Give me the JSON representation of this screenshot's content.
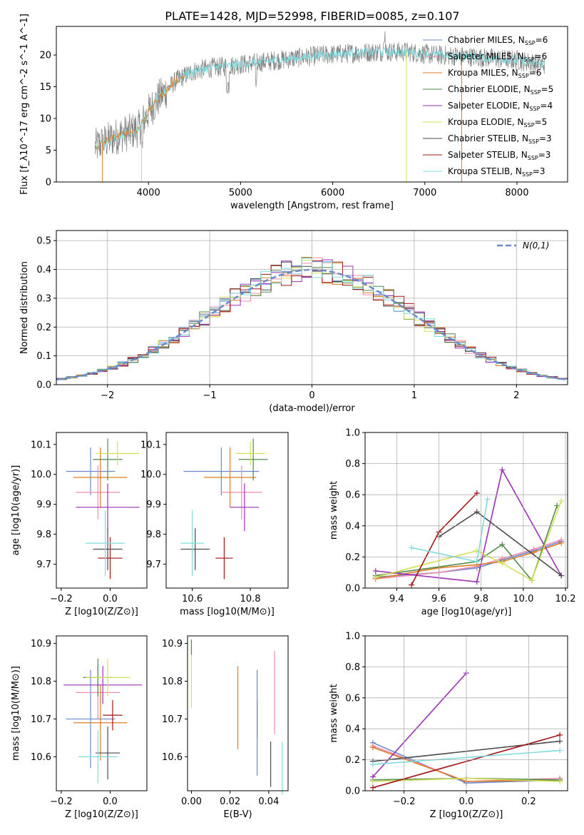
{
  "chart_data": [
    {
      "id": "spectrum",
      "type": "line",
      "title": "PLATE=1428, MJD=52998, FIBERID=0085, z=0.107",
      "xlabel": "wavelength [Angstrom, rest frame]",
      "ylabel": "Flux [f_λ10^-17 erg cm^-2 s^-1 A^-1]",
      "xlim": [
        3000,
        8550
      ],
      "ylim": [
        0,
        24.5
      ],
      "xticks": [
        4000,
        5000,
        6000,
        7000,
        8000
      ],
      "yticks": [
        0,
        5,
        10,
        15,
        20
      ],
      "grid": false,
      "legend_position": "upper-right",
      "spectrum_continuum": {
        "x": [
          3420,
          3550,
          3700,
          3800,
          3900,
          4000,
          4100,
          4200,
          4300,
          4500,
          4700,
          5000,
          5300,
          5600,
          5900,
          6200,
          6500,
          6800,
          7100,
          7400,
          7700,
          8000,
          8300
        ],
        "y": [
          5.5,
          6.5,
          7.5,
          7.8,
          8.5,
          11.0,
          13.0,
          14.5,
          16.0,
          17.5,
          18.0,
          18.5,
          19.0,
          19.5,
          20.0,
          20.3,
          20.5,
          20.5,
          20.0,
          19.8,
          19.5,
          19.2,
          18.5
        ]
      },
      "series": [
        {
          "name": "Chabrier MILES, N_SSP=6",
          "color": "#6a89cc"
        },
        {
          "name": "Salpeter MILES, N_SSP=6",
          "color": "#f08caf"
        },
        {
          "name": "Kroupa MILES, N_SSP=6",
          "color": "#e07b24"
        },
        {
          "name": "Chabrier ELODIE, N_SSP=5",
          "color": "#4f8a4a"
        },
        {
          "name": "Salpeter ELODIE, N_SSP=4",
          "color": "#9b30b5"
        },
        {
          "name": "Kroupa ELODIE, N_SSP=5",
          "color": "#d4e157"
        },
        {
          "name": "Chabrier STELIB, N_SSP=3",
          "color": "#4a4a4a"
        },
        {
          "name": "Salpeter STELIB, N_SSP=3",
          "color": "#a31515"
        },
        {
          "name": "Kroupa STELIB, N_SSP=3",
          "color": "#7fdde0"
        }
      ]
    },
    {
      "id": "residuals",
      "type": "line",
      "xlabel": "(data-model)/error",
      "ylabel": "Normed distribution",
      "xlim": [
        -2.5,
        2.5
      ],
      "ylim": [
        0,
        0.535
      ],
      "xticks": [
        -2,
        -1,
        0,
        1,
        2
      ],
      "yticks": [
        0.0,
        0.1,
        0.2,
        0.3,
        0.4,
        0.5
      ],
      "grid": true,
      "legend_position": "upper-right",
      "legend": "N(0,1)",
      "gaussian": {
        "mean": 0,
        "sigma": 1
      }
    },
    {
      "id": "age_vs_Z",
      "type": "scatter",
      "xlabel": "Z [log10(Z/Z⊙)]",
      "ylabel": "age [log10(age/yr)]",
      "xlim": [
        -0.22,
        0.15
      ],
      "ylim": [
        9.62,
        10.14
      ],
      "xticks": [
        -0.2,
        0.0
      ],
      "yticks": [
        9.7,
        9.8,
        9.9,
        10.0,
        10.1
      ],
      "points": [
        {
          "x": -0.08,
          "xerr": 0.1,
          "y": 10.01,
          "yerr": 0.08,
          "series": "Chabrier MILES"
        },
        {
          "x": -0.05,
          "xerr": 0.09,
          "y": 9.94,
          "yerr": 0.09,
          "series": "Salpeter MILES"
        },
        {
          "x": -0.04,
          "xerr": 0.11,
          "y": 9.99,
          "yerr": 0.1,
          "series": "Kroupa MILES"
        },
        {
          "x": -0.01,
          "xerr": 0.06,
          "y": 10.05,
          "yerr": 0.07,
          "series": "Chabrier ELODIE"
        },
        {
          "x": -0.01,
          "xerr": 0.13,
          "y": 9.89,
          "yerr": 0.08,
          "series": "Salpeter ELODIE"
        },
        {
          "x": 0.03,
          "xerr": 0.09,
          "y": 10.07,
          "yerr": 0.04,
          "series": "Kroupa ELODIE"
        },
        {
          "x": -0.01,
          "xerr": 0.06,
          "y": 9.75,
          "yerr": 0.07,
          "series": "Chabrier STELIB"
        },
        {
          "x": 0.0,
          "xerr": 0.05,
          "y": 9.72,
          "yerr": 0.07,
          "series": "Salpeter STELIB"
        },
        {
          "x": -0.02,
          "xerr": 0.08,
          "y": 9.77,
          "yerr": 0.11,
          "series": "Kroupa STELIB"
        }
      ]
    },
    {
      "id": "age_vs_mass",
      "type": "scatter",
      "xlabel": "mass [log10(M/M⊙)]",
      "ylabel": "",
      "xlim": [
        10.51,
        10.93
      ],
      "ylim": [
        9.62,
        10.14
      ],
      "xticks": [
        10.6,
        10.8
      ],
      "yticks": [
        9.7,
        9.8,
        9.9,
        10.0,
        10.1
      ],
      "points": [
        {
          "x": 10.7,
          "xerr": 0.13,
          "y": 10.01,
          "yerr": 0.08,
          "series": "Chabrier MILES"
        },
        {
          "x": 10.77,
          "xerr": 0.07,
          "y": 9.94,
          "yerr": 0.09,
          "series": "Salpeter MILES"
        },
        {
          "x": 10.73,
          "xerr": 0.09,
          "y": 9.99,
          "yerr": 0.1,
          "series": "Kroupa MILES"
        },
        {
          "x": 10.81,
          "xerr": 0.05,
          "y": 10.05,
          "yerr": 0.07,
          "series": "Chabrier ELODIE"
        },
        {
          "x": 10.78,
          "xerr": 0.05,
          "y": 9.89,
          "yerr": 0.08,
          "series": "Salpeter ELODIE"
        },
        {
          "x": 10.8,
          "xerr": 0.05,
          "y": 10.07,
          "yerr": 0.04,
          "series": "Kroupa ELODIE"
        },
        {
          "x": 10.61,
          "xerr": 0.05,
          "y": 9.75,
          "yerr": 0.07,
          "series": "Chabrier STELIB"
        },
        {
          "x": 10.71,
          "xerr": 0.03,
          "y": 9.72,
          "yerr": 0.07,
          "series": "Salpeter STELIB"
        },
        {
          "x": 10.6,
          "xerr": 0.04,
          "y": 9.77,
          "yerr": 0.11,
          "series": "Kroupa STELIB"
        }
      ]
    },
    {
      "id": "mass_weight_vs_age",
      "type": "line",
      "xlabel": "age [log10(age/yr)]",
      "ylabel": "mass weight",
      "xlim": [
        9.25,
        10.21
      ],
      "ylim": [
        0,
        1.0
      ],
      "xticks": [
        9.4,
        9.6,
        9.8,
        10.0,
        10.2
      ],
      "yticks": [
        0.0,
        0.2,
        0.4,
        0.6,
        0.8,
        1.0
      ],
      "grid": true,
      "series": [
        {
          "name": "Chabrier MILES",
          "x": [
            9.3,
            9.6,
            9.78,
            9.9,
            10.05,
            10.18
          ],
          "y": [
            0.07,
            0.1,
            0.13,
            0.18,
            0.24,
            0.3
          ]
        },
        {
          "name": "Salpeter MILES",
          "x": [
            9.3,
            9.6,
            9.78,
            9.9,
            10.05,
            10.18
          ],
          "y": [
            0.06,
            0.1,
            0.14,
            0.19,
            0.25,
            0.31
          ]
        },
        {
          "name": "Kroupa MILES",
          "x": [
            9.3,
            9.6,
            9.78,
            9.9,
            10.05,
            10.18
          ],
          "y": [
            0.06,
            0.13,
            0.15,
            0.17,
            0.23,
            0.29
          ]
        },
        {
          "name": "Chabrier ELODIE",
          "x": [
            9.3,
            9.78,
            9.9,
            10.04,
            10.16
          ],
          "y": [
            0.08,
            0.17,
            0.28,
            0.05,
            0.53
          ]
        },
        {
          "name": "Salpeter ELODIE",
          "x": [
            9.3,
            9.78,
            9.9,
            10.18
          ],
          "y": [
            0.11,
            0.04,
            0.76,
            0.08
          ]
        },
        {
          "name": "Kroupa ELODIE",
          "x": [
            9.3,
            9.78,
            9.9,
            10.04,
            10.18
          ],
          "y": [
            0.07,
            0.24,
            0.16,
            0.05,
            0.56
          ]
        },
        {
          "name": "Chabrier STELIB",
          "x": [
            9.6,
            9.78,
            10.18
          ],
          "y": [
            0.33,
            0.49,
            0.08
          ]
        },
        {
          "name": "Salpeter STELIB",
          "x": [
            9.47,
            9.6,
            9.78
          ],
          "y": [
            0.02,
            0.36,
            0.61
          ]
        },
        {
          "name": "Kroupa STELIB",
          "x": [
            9.47,
            9.78,
            9.83
          ],
          "y": [
            0.26,
            0.17,
            0.57
          ]
        }
      ]
    },
    {
      "id": "mass_vs_Z",
      "type": "scatter",
      "xlabel": "Z [log10(Z/Z⊙)]",
      "ylabel": "mass [log10(M/M⊙)]",
      "xlim": [
        -0.22,
        0.15
      ],
      "ylim": [
        10.51,
        10.92
      ],
      "xticks": [
        -0.2,
        0.0
      ],
      "yticks": [
        10.6,
        10.7,
        10.8,
        10.9
      ],
      "points": [
        {
          "x": -0.08,
          "xerr": 0.1,
          "y": 10.7,
          "yerr": 0.13,
          "series": "Chabrier MILES"
        },
        {
          "x": -0.05,
          "xerr": 0.09,
          "y": 10.77,
          "yerr": 0.07,
          "series": "Salpeter MILES"
        },
        {
          "x": -0.04,
          "xerr": 0.11,
          "y": 10.69,
          "yerr": 0.1,
          "series": "Kroupa MILES"
        },
        {
          "x": -0.05,
          "xerr": 0.06,
          "y": 10.81,
          "yerr": 0.05,
          "series": "Chabrier ELODIE"
        },
        {
          "x": -0.03,
          "xerr": 0.16,
          "y": 10.79,
          "yerr": 0.05,
          "series": "Salpeter ELODIE"
        },
        {
          "x": -0.01,
          "xerr": 0.09,
          "y": 10.81,
          "yerr": 0.05,
          "series": "Kroupa ELODIE"
        },
        {
          "x": -0.01,
          "xerr": 0.05,
          "y": 10.61,
          "yerr": 0.07,
          "series": "Chabrier STELIB"
        },
        {
          "x": 0.01,
          "xerr": 0.04,
          "y": 10.71,
          "yerr": 0.04,
          "series": "Salpeter STELIB"
        },
        {
          "x": -0.05,
          "xerr": 0.08,
          "y": 10.6,
          "yerr": 0.07,
          "series": "Kroupa STELIB"
        }
      ]
    },
    {
      "id": "mass_vs_ebv",
      "type": "scatter",
      "xlabel": "E(B-V)",
      "ylabel": "",
      "xlim": [
        -0.002,
        0.05
      ],
      "ylim": [
        10.51,
        10.92
      ],
      "xticks": [
        0.0,
        0.02,
        0.04
      ],
      "yticks": [
        10.6,
        10.7,
        10.8,
        10.9
      ],
      "points": [
        {
          "x": 0.0,
          "y": 10.82,
          "yerr": 0.09,
          "series": "Kroupa ELODIE"
        },
        {
          "x": 0.0,
          "y": 10.89,
          "yerr": 0.02,
          "series": "Chabrier ELODIE"
        },
        {
          "x": 0.024,
          "y": 10.73,
          "yerr": 0.11,
          "series": "Kroupa MILES"
        },
        {
          "x": 0.034,
          "y": 10.7,
          "yerr": 0.05,
          "series": "Salpeter STELIB"
        },
        {
          "x": 0.034,
          "y": 10.69,
          "yerr": 0.14,
          "series": "Chabrier MILES"
        },
        {
          "x": 0.041,
          "y": 10.58,
          "yerr": 0.06,
          "series": "Chabrier STELIB"
        },
        {
          "x": 0.043,
          "y": 10.77,
          "yerr": 0.11,
          "series": "Salpeter MILES"
        },
        {
          "x": 0.047,
          "y": 10.57,
          "yerr": 0.07,
          "series": "Kroupa STELIB"
        }
      ]
    },
    {
      "id": "mass_weight_vs_Z",
      "type": "line",
      "xlabel": "Z [log10(Z/Z⊙)]",
      "ylabel": "mass weight",
      "xlim": [
        -0.325,
        0.325
      ],
      "ylim": [
        0,
        1.0
      ],
      "xticks": [
        -0.2,
        0.0,
        0.2
      ],
      "yticks": [
        0.0,
        0.2,
        0.4,
        0.6,
        0.8,
        1.0
      ],
      "grid": true,
      "series": [
        {
          "name": "Chabrier MILES",
          "x": [
            -0.3,
            0.0,
            0.3
          ],
          "y": [
            0.31,
            0.05,
            0.07
          ]
        },
        {
          "name": "Salpeter MILES",
          "x": [
            -0.3,
            0.0,
            0.3
          ],
          "y": [
            0.29,
            0.06,
            0.08
          ]
        },
        {
          "name": "Kroupa MILES",
          "x": [
            -0.3,
            0.0,
            0.3
          ],
          "y": [
            0.28,
            0.06,
            0.07
          ]
        },
        {
          "name": "Chabrier ELODIE",
          "x": [
            -0.3,
            0.0,
            0.3
          ],
          "y": [
            0.07,
            0.08,
            0.07
          ]
        },
        {
          "name": "Salpeter ELODIE",
          "x": [
            -0.3,
            0.0
          ],
          "y": [
            0.09,
            0.76
          ]
        },
        {
          "name": "Kroupa ELODIE",
          "x": [
            -0.3,
            0.0,
            0.3
          ],
          "y": [
            0.06,
            0.08,
            0.06
          ]
        },
        {
          "name": "Chabrier STELIB",
          "x": [
            -0.3,
            0.3
          ],
          "y": [
            0.19,
            0.32
          ]
        },
        {
          "name": "Salpeter STELIB",
          "x": [
            -0.3,
            0.3
          ],
          "y": [
            0.02,
            0.36
          ]
        },
        {
          "name": "Kroupa STELIB",
          "x": [
            -0.3,
            0.3
          ],
          "y": [
            0.17,
            0.26
          ]
        }
      ]
    }
  ]
}
